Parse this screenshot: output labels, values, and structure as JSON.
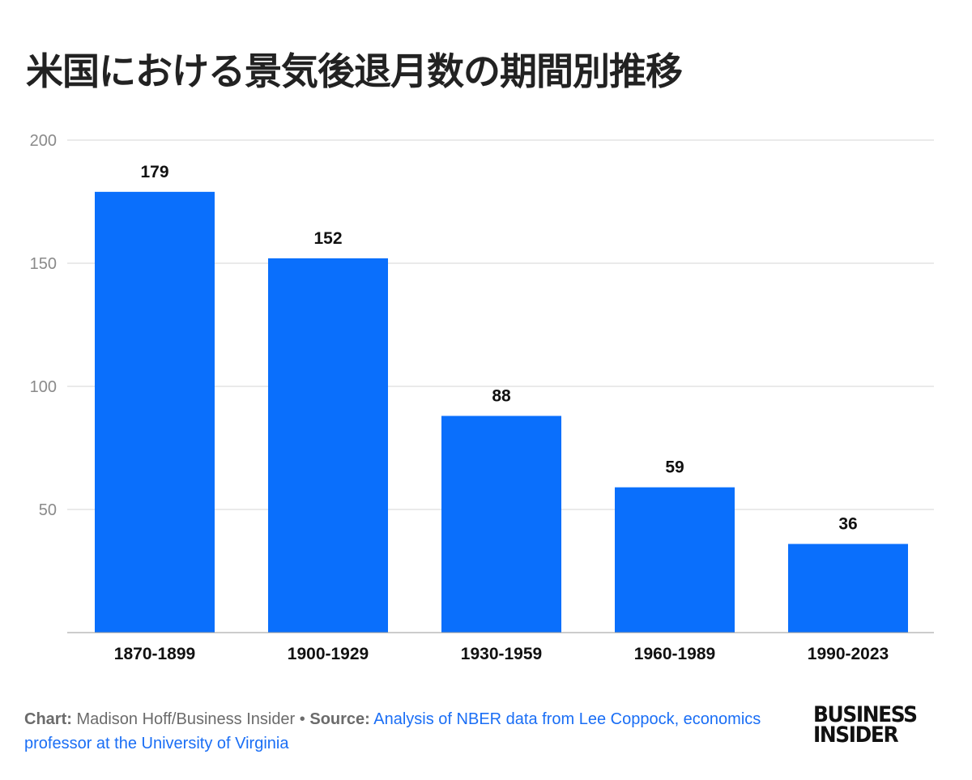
{
  "chart_data": {
    "type": "bar",
    "title": "米国における景気後退月数の期間別推移",
    "categories": [
      "1870-1899",
      "1900-1929",
      "1930-1959",
      "1960-1989",
      "1990-2023"
    ],
    "values": [
      179,
      152,
      88,
      59,
      36
    ],
    "xlabel": "",
    "ylabel": "",
    "ylim": [
      0,
      200
    ],
    "yticks": [
      50,
      100,
      150,
      200
    ],
    "grid": true,
    "data_labels": true,
    "bar_color": "#0a6ffc"
  },
  "footer": {
    "chart_label": "Chart:",
    "chart_credit": "Madison Hoff/Business Insider",
    "separator": "•",
    "source_label": "Source:",
    "source_text": "Analysis of NBER data from Lee Coppock, economics professor at the University of Virginia"
  },
  "logo": {
    "line1": "BUSINESS",
    "line2": "INSIDER"
  }
}
